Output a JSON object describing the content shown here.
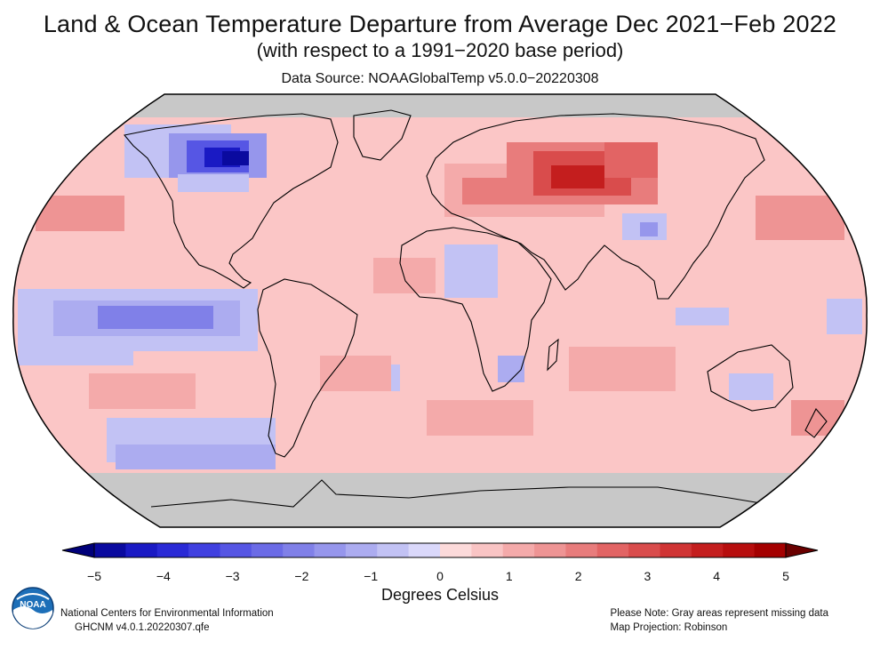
{
  "header": {
    "title": "Land & Ocean Temperature Departure from Average Dec 2021−Feb 2022",
    "subtitle": "(with respect to a 1991−2020 base period)",
    "source": "Data Source: NOAAGlobalTemp v5.0.0−20220308"
  },
  "map": {
    "projection": "Robinson",
    "missing_color": "#c8c8c8",
    "ocean_base_color": "#fbc6c6"
  },
  "legend": {
    "tick_labels": [
      "−5",
      "−4",
      "−3",
      "−2",
      "−1",
      "0",
      "1",
      "2",
      "3",
      "4",
      "5"
    ],
    "units": "Degrees Celsius",
    "range": [
      -5,
      5
    ],
    "colors": [
      "#0a0a9f",
      "#1a1ac4",
      "#2a2ad6",
      "#4040e0",
      "#5656e4",
      "#6b6be6",
      "#8080e8",
      "#9696ec",
      "#acacf0",
      "#c2c2f4",
      "#dad8fa",
      "#fcdada",
      "#f9c4c4",
      "#f4aaaa",
      "#ee9494",
      "#e87c7c",
      "#e26464",
      "#d94c4c",
      "#d03434",
      "#c41e1e",
      "#b70e0e",
      "#a40000"
    ]
  },
  "footer": {
    "org": "National Centers for Environmental Information",
    "dataset": "GHCNM v4.0.1.20220307.qfe",
    "note": "Please Note: Gray areas represent missing data",
    "projection_note": "Map Projection: Robinson"
  },
  "logo": {
    "text": "NOAA"
  }
}
